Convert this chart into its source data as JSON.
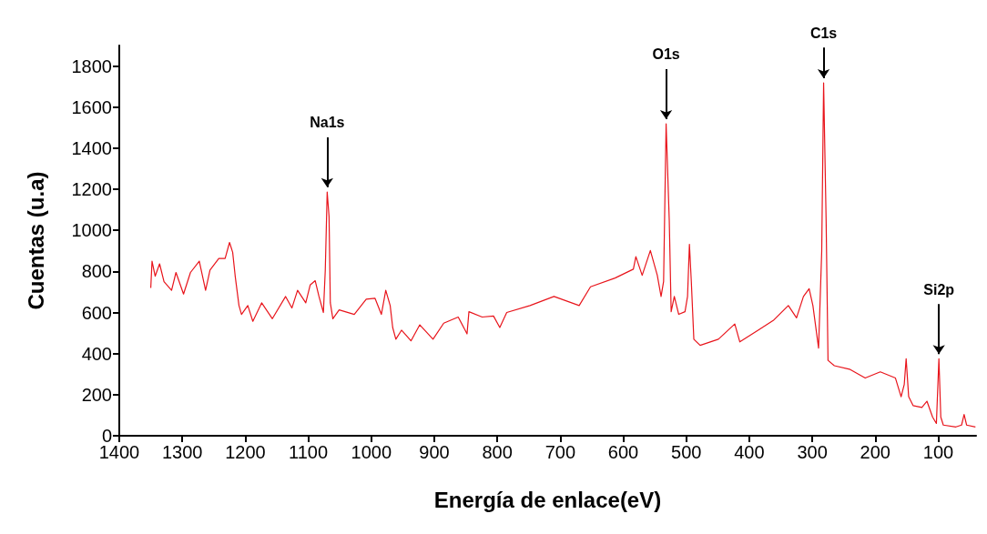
{
  "chart_data": {
    "type": "line",
    "xlabel": "Energía de enlace(eV)",
    "ylabel": "Cuentas (u.a)",
    "xlim": [
      1400,
      40
    ],
    "xticks": [
      1400,
      1300,
      1200,
      1100,
      1000,
      900,
      800,
      700,
      600,
      500,
      400,
      300,
      200,
      100
    ],
    "ylim": [
      0,
      1900
    ],
    "yticks": [
      0,
      200,
      400,
      600,
      800,
      1000,
      1200,
      1400,
      1600,
      1800
    ],
    "grid": false,
    "marker": "none",
    "line_style": "solid",
    "annotations": [
      {
        "text": "Na1s",
        "x": 1070,
        "y": 1187
      },
      {
        "text": "O1s",
        "x": 532,
        "y": 1519
      },
      {
        "text": "C1s",
        "x": 282,
        "y": 1718
      },
      {
        "text": "Si2p",
        "x": 99,
        "y": 375
      }
    ],
    "series": [
      {
        "color": "#e8141b",
        "x": [
          1350,
          1348,
          1343,
          1336,
          1329,
          1317,
          1310,
          1298,
          1287,
          1273,
          1263,
          1256,
          1242,
          1232,
          1225,
          1220,
          1216,
          1210,
          1206,
          1196,
          1188,
          1174,
          1157,
          1136,
          1126,
          1117,
          1104,
          1097,
          1089,
          1083,
          1076,
          1073,
          1070,
          1067,
          1065,
          1061,
          1051,
          1027,
          1008,
          994,
          984,
          977,
          970,
          966,
          961,
          952,
          937,
          923,
          902,
          885,
          862,
          848,
          845,
          824,
          806,
          796,
          785,
          748,
          710,
          670,
          652,
          613,
          584,
          580,
          570,
          557,
          546,
          540,
          536,
          532,
          527,
          524,
          519,
          512,
          502,
          498,
          495,
          492,
          488,
          478,
          449,
          423,
          415,
          386,
          362,
          338,
          325,
          314,
          305,
          299,
          290,
          285,
          282,
          278,
          275,
          265,
          241,
          216,
          192,
          168,
          159,
          154,
          151,
          147,
          140,
          126,
          118,
          109,
          103,
          99,
          96,
          92,
          72,
          63,
          59,
          55,
          41
        ],
        "values": [
          720,
          850,
          777,
          837,
          750,
          708,
          795,
          690,
          795,
          850,
          708,
          807,
          863,
          863,
          941,
          893,
          777,
          634,
          591,
          634,
          557,
          647,
          570,
          678,
          622,
          708,
          647,
          734,
          755,
          678,
          600,
          807,
          1187,
          1066,
          647,
          570,
          613,
          591,
          665,
          669,
          591,
          708,
          634,
          527,
          470,
          514,
          462,
          540,
          470,
          548,
          578,
          496,
          604,
          578,
          583,
          527,
          600,
          634,
          678,
          634,
          725,
          768,
          811,
          872,
          781,
          902,
          781,
          678,
          751,
          1519,
          1049,
          604,
          678,
          591,
          604,
          678,
          932,
          751,
          470,
          440,
          470,
          544,
          457,
          514,
          561,
          634,
          574,
          678,
          716,
          634,
          427,
          898,
          1718,
          1044,
          367,
          341,
          324,
          281,
          311,
          281,
          190,
          250,
          375,
          190,
          147,
          138,
          168,
          91,
          60,
          375,
          91,
          52,
          43,
          52,
          104,
          52,
          43
        ]
      }
    ]
  }
}
